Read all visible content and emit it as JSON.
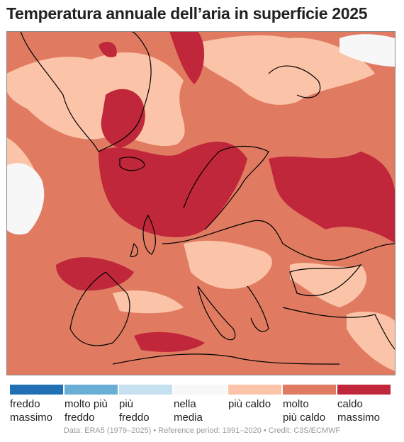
{
  "title": "Temperatura annuale dell’aria in superficie 2025",
  "legend": [
    {
      "color": "#2170b5",
      "label": [
        "freddo",
        "massimo"
      ]
    },
    {
      "color": "#6aaed6",
      "label": [
        "molto più",
        "freddo"
      ]
    },
    {
      "color": "#c5e0ef",
      "label": [
        "più",
        "freddo"
      ]
    },
    {
      "color": "#f7f7f7",
      "label": [
        "nella",
        "media"
      ]
    },
    {
      "color": "#fbc4a8",
      "label": [
        "più caldo"
      ]
    },
    {
      "color": "#e07b62",
      "label": [
        "molto",
        "più caldo"
      ]
    },
    {
      "color": "#c0273a",
      "label": [
        "caldo",
        "massimo"
      ]
    }
  ],
  "credit": "Data: ERA5 (1979–2025) • Reference period: 1991–2020 • Credit: C3S/ECMWF"
}
